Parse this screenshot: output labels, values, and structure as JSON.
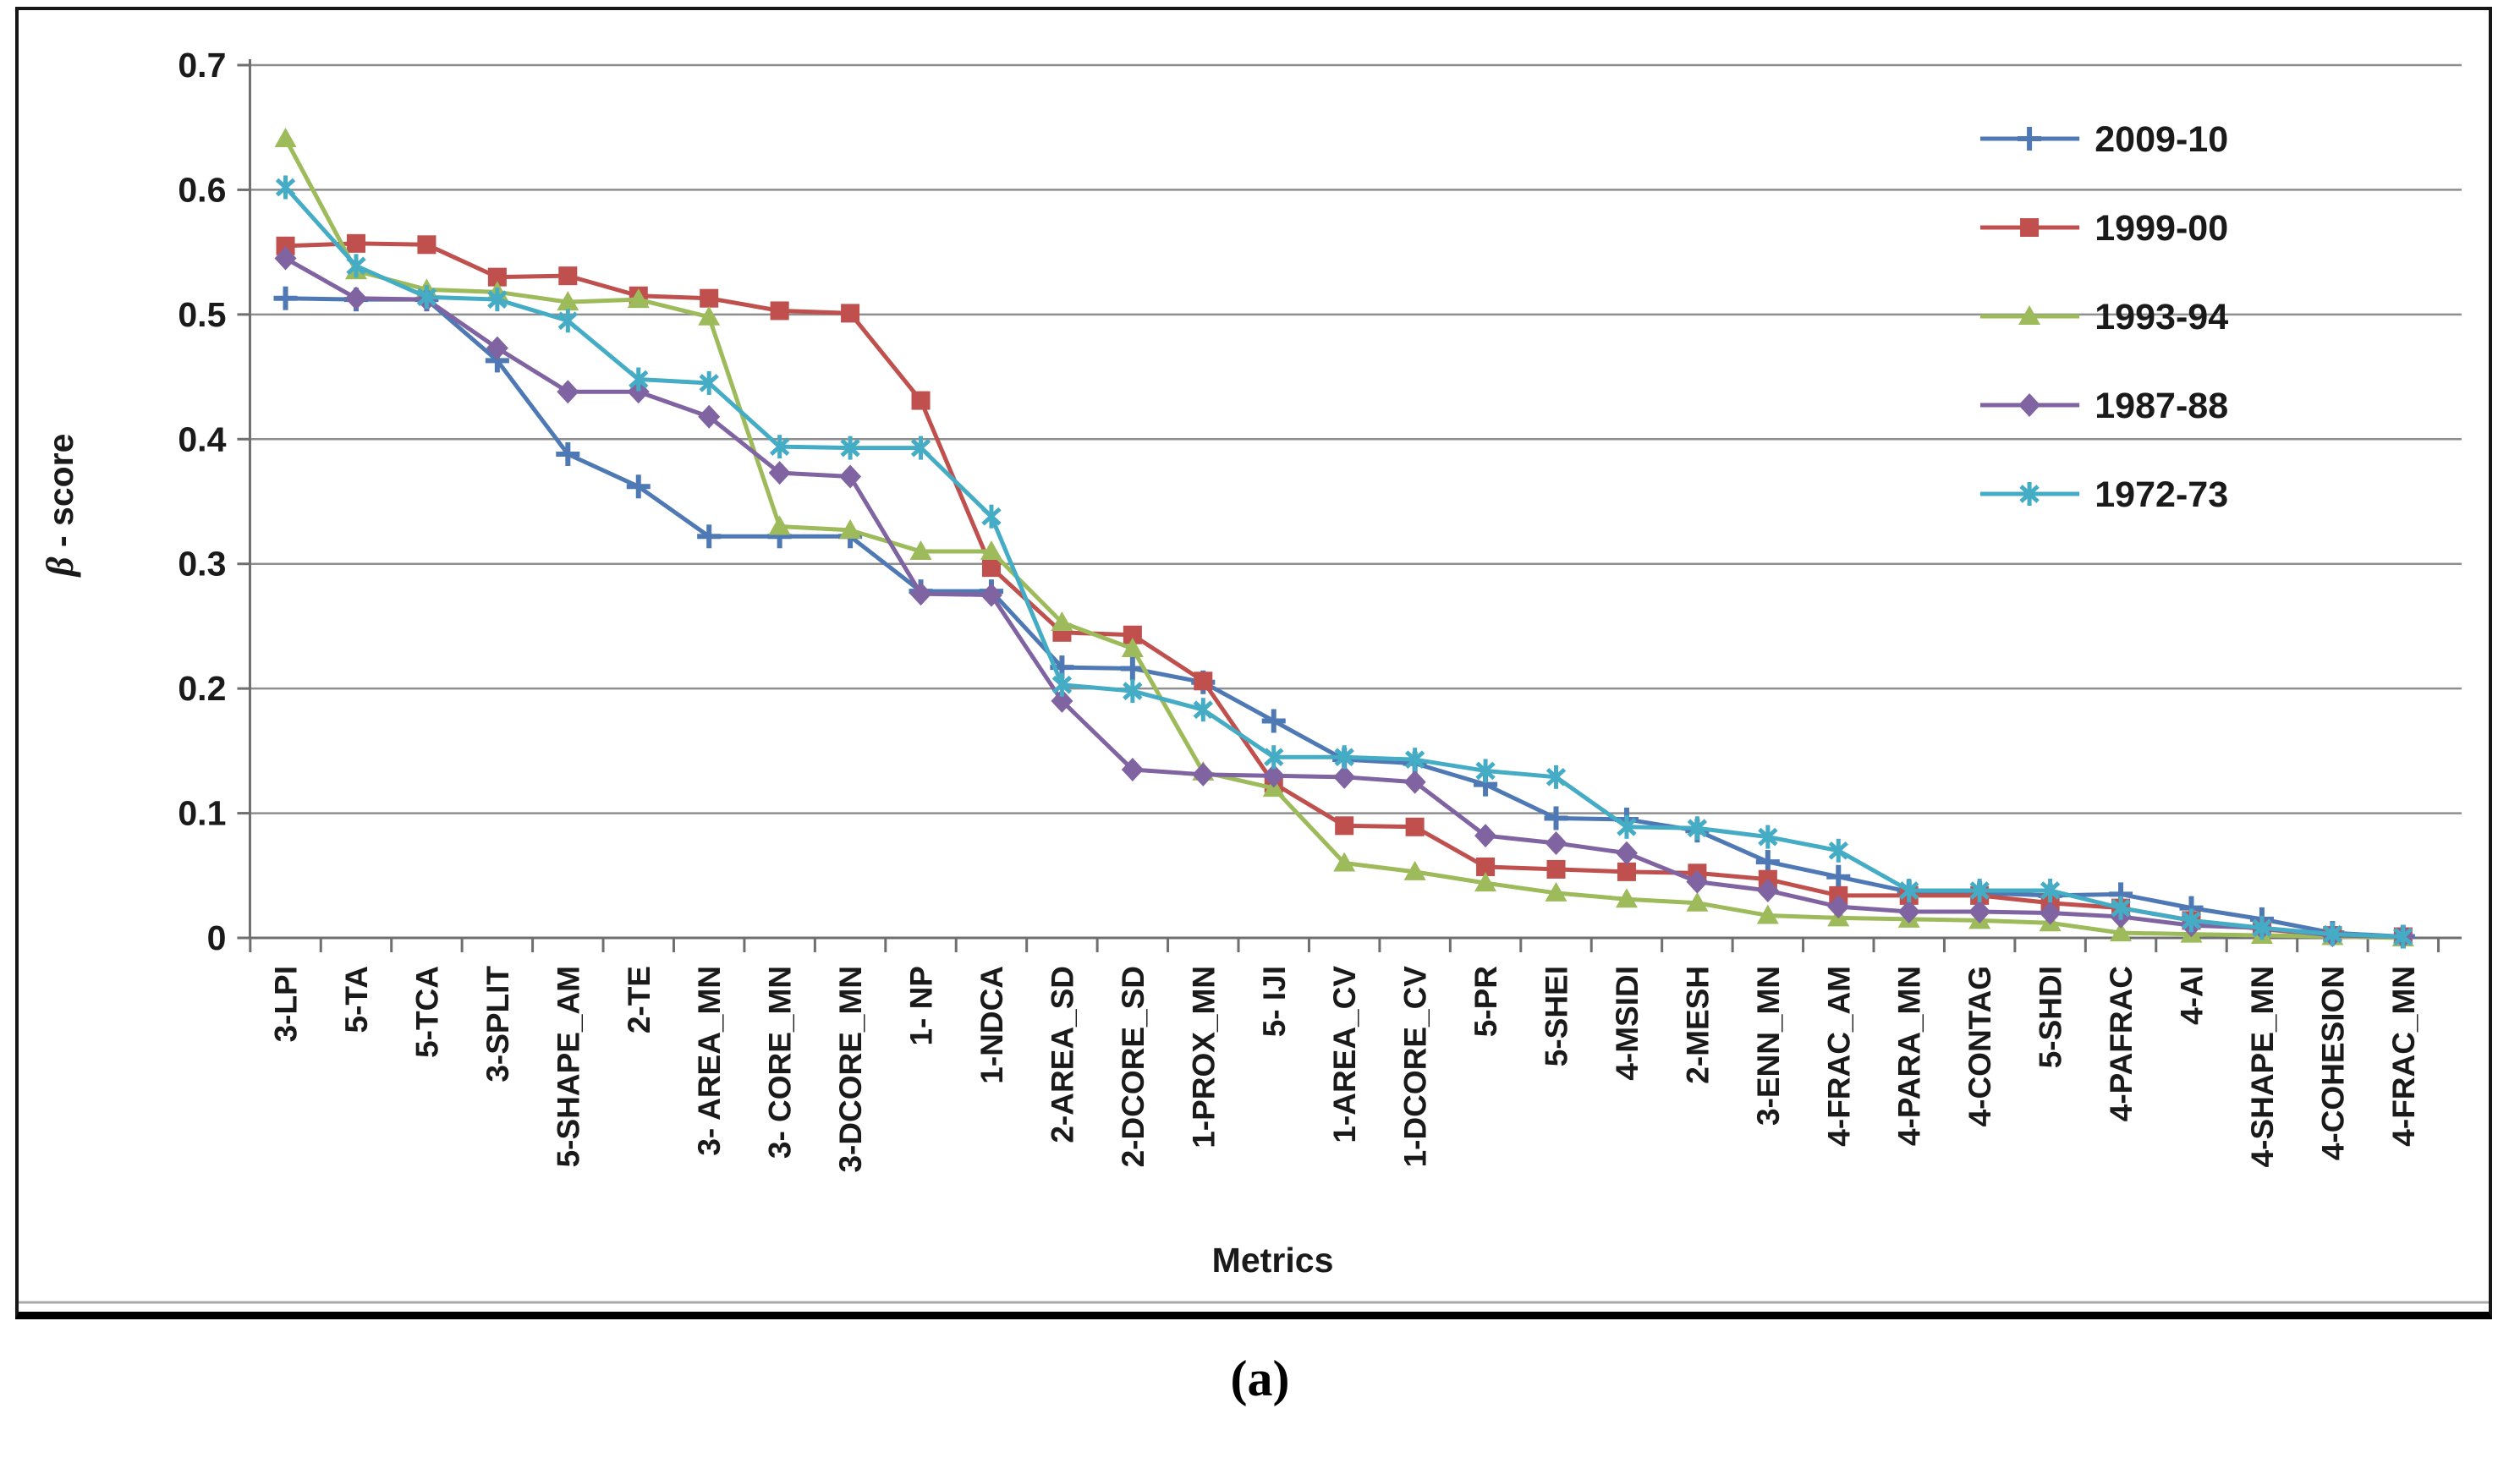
{
  "caption": {
    "label": "(a)"
  },
  "chart_data": {
    "type": "line",
    "title": "",
    "xlabel": "Metrics",
    "ylabel": "β - score",
    "ylim": [
      0,
      0.7
    ],
    "yticks": [
      0,
      0.1,
      0.2,
      0.3,
      0.4,
      0.5,
      0.6,
      0.7
    ],
    "ytick_labels": [
      "0",
      "0.1",
      "0.2",
      "0.3",
      "0.4",
      "0.5",
      "0.6",
      "0.7"
    ],
    "grid": true,
    "legend_position": "top-right",
    "categories": [
      "3-LPI",
      "5-TA",
      "5-TCA",
      "3-SPLIT",
      "5-SHAPE_AM",
      "2-TE",
      "3- AREA_MN",
      "3- CORE_MN",
      "3-DCORE_MN",
      "1- NP",
      "1-NDCA",
      "2-AREA_SD",
      "2-DCORE_SD",
      "1-PROX_MN",
      "5- IJI",
      "1-AREA_CV",
      "1-DCORE_CV",
      "5-PR",
      "5-SHEI",
      "4-MSIDI",
      "2-MESH",
      "3-ENN_MN",
      "4-FRAC_AM",
      "4-PARA_MN",
      "4-CONTAG",
      "5-SHDI",
      "4-PAFRAC",
      "4-AI",
      "4-SHAPE_MN",
      "4-COHESION",
      "4-FRAC_MN"
    ],
    "series": [
      {
        "name": "2009-10",
        "color": "#4e79b5",
        "marker": "plus",
        "values": [
          0.513,
          0.512,
          0.512,
          0.463,
          0.388,
          0.362,
          0.322,
          0.322,
          0.322,
          0.278,
          0.278,
          0.217,
          0.216,
          0.205,
          0.174,
          0.143,
          0.14,
          0.123,
          0.096,
          0.095,
          0.086,
          0.061,
          0.049,
          0.037,
          0.036,
          0.034,
          0.035,
          0.024,
          0.015,
          0.004,
          0.001
        ]
      },
      {
        "name": "1999-00",
        "color": "#c0504d",
        "marker": "square",
        "values": [
          0.555,
          0.557,
          0.556,
          0.53,
          0.531,
          0.515,
          0.513,
          0.503,
          0.501,
          0.431,
          0.297,
          0.245,
          0.243,
          0.206,
          0.124,
          0.09,
          0.089,
          0.057,
          0.055,
          0.053,
          0.052,
          0.047,
          0.034,
          0.034,
          0.034,
          0.028,
          0.024,
          0.014,
          0.007,
          0.002,
          0.001
        ]
      },
      {
        "name": "1993-94",
        "color": "#9dbb5a",
        "marker": "triangle",
        "values": [
          0.641,
          0.535,
          0.52,
          0.518,
          0.51,
          0.512,
          0.498,
          0.33,
          0.327,
          0.31,
          0.31,
          0.253,
          0.232,
          0.133,
          0.12,
          0.06,
          0.053,
          0.044,
          0.036,
          0.031,
          0.028,
          0.018,
          0.016,
          0.015,
          0.014,
          0.012,
          0.004,
          0.003,
          0.002,
          0.001,
          0.0
        ]
      },
      {
        "name": "1987-88",
        "color": "#8064a2",
        "marker": "diamond",
        "values": [
          0.545,
          0.513,
          0.512,
          0.473,
          0.438,
          0.438,
          0.418,
          0.373,
          0.37,
          0.276,
          0.275,
          0.19,
          0.135,
          0.131,
          0.13,
          0.129,
          0.125,
          0.082,
          0.076,
          0.068,
          0.045,
          0.038,
          0.025,
          0.021,
          0.021,
          0.02,
          0.017,
          0.01,
          0.008,
          0.002,
          0.001
        ]
      },
      {
        "name": "1972-73",
        "color": "#45acc5",
        "marker": "star",
        "values": [
          0.602,
          0.539,
          0.514,
          0.512,
          0.495,
          0.448,
          0.445,
          0.394,
          0.393,
          0.393,
          0.338,
          0.203,
          0.198,
          0.183,
          0.145,
          0.145,
          0.143,
          0.134,
          0.129,
          0.089,
          0.088,
          0.081,
          0.07,
          0.038,
          0.038,
          0.038,
          0.024,
          0.014,
          0.008,
          0.003,
          0.001
        ]
      }
    ]
  }
}
